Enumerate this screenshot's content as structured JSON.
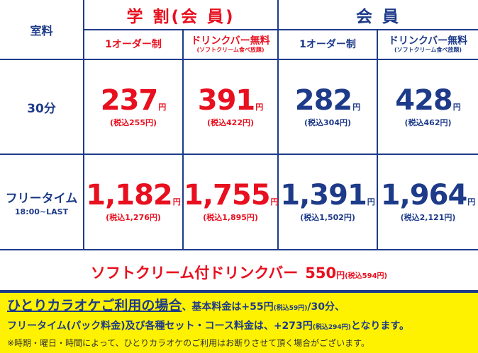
{
  "header": {
    "corner": "室料",
    "student_title": "学 割(会 員)",
    "member_title": "会 員",
    "one_order": "1オーダー制",
    "drink_bar": "ドリンクバー無料",
    "drink_bar_note": "(ソフトクリーム食べ放題)"
  },
  "rows": [
    {
      "label": "30分",
      "sublabel": "",
      "prices": [
        {
          "price": "237",
          "unit": "円",
          "tax": "(税込255円)"
        },
        {
          "price": "391",
          "unit": "円",
          "tax": "(税込422円)"
        },
        {
          "price": "282",
          "unit": "円",
          "tax": "(税込304円)"
        },
        {
          "price": "428",
          "unit": "円",
          "tax": "(税込462円)"
        }
      ]
    },
    {
      "label": "フリータイム",
      "sublabel": "18:00~LAST",
      "prices": [
        {
          "price": "1,182",
          "unit": "円",
          "tax": "(税込1,276円)"
        },
        {
          "price": "1,755",
          "unit": "円",
          "tax": "(税込1,895円)"
        },
        {
          "price": "1,391",
          "unit": "円",
          "tax": "(税込1,502円)"
        },
        {
          "price": "1,964",
          "unit": "円",
          "tax": "(税込2,121円)"
        }
      ]
    }
  ],
  "drink_offer": {
    "label": "ソフトクリーム付ドリンクバー",
    "price": "550",
    "unit": "円",
    "tax": "(税込594円)"
  },
  "notice": {
    "line1_big": "ひとりカラオケご利用の場合",
    "line1_a": "、基本料金は+55円",
    "line1_tax": "(税込59円)",
    "line1_b": "/30分、",
    "line2_a": "フリータイム(パック料金)及び各種セット・コース料金は、+273円",
    "line2_tax": "(税込294円)",
    "line2_b": "となります。",
    "line3": "※時期・曜日・時間によって、ひとりカラオケのご利用はお断りさせて頂く場合がございます。"
  },
  "colors": {
    "student": "#e8101f",
    "member": "#1e3b8a",
    "notice_bg": "#fff200"
  }
}
